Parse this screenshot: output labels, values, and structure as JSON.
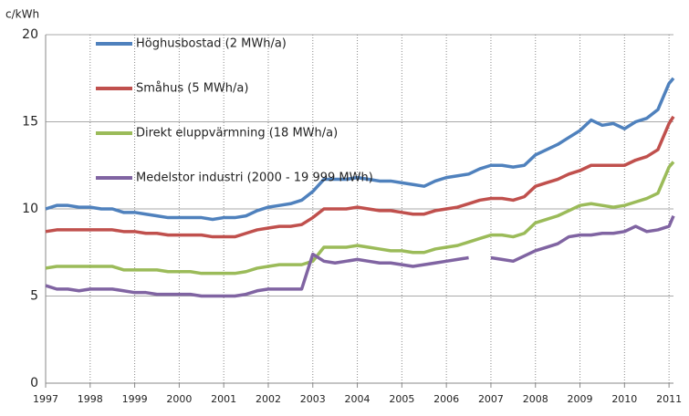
{
  "chart_data": {
    "type": "line",
    "y_label": "c/kWh",
    "x": [
      1997,
      1997.25,
      1997.5,
      1997.75,
      1998,
      1998.25,
      1998.5,
      1998.75,
      1999,
      1999.25,
      1999.5,
      1999.75,
      2000,
      2000.25,
      2000.5,
      2000.75,
      2001,
      2001.25,
      2001.5,
      2001.75,
      2002,
      2002.25,
      2002.5,
      2002.75,
      2003,
      2003.25,
      2003.5,
      2003.75,
      2004,
      2004.25,
      2004.5,
      2004.75,
      2005,
      2005.25,
      2005.5,
      2005.75,
      2006,
      2006.25,
      2006.5,
      2006.75,
      2007,
      2007.25,
      2007.5,
      2007.75,
      2008,
      2008.25,
      2008.5,
      2008.75,
      2009,
      2009.25,
      2009.5,
      2009.75,
      2010,
      2010.25,
      2010.5,
      2010.75,
      2011,
      2011.1
    ],
    "series": [
      {
        "name": "Höghusbostad (2 MWh/a)",
        "color": "#4f81bd",
        "values": [
          10.0,
          10.2,
          10.2,
          10.1,
          10.1,
          10.0,
          10.0,
          9.8,
          9.8,
          9.7,
          9.6,
          9.5,
          9.5,
          9.5,
          9.5,
          9.4,
          9.5,
          9.5,
          9.6,
          9.9,
          10.1,
          10.2,
          10.3,
          10.5,
          11.0,
          11.7,
          11.7,
          11.7,
          11.8,
          11.7,
          11.6,
          11.6,
          11.5,
          11.4,
          11.3,
          11.6,
          11.8,
          11.9,
          12.0,
          12.3,
          12.5,
          12.5,
          12.4,
          12.5,
          13.1,
          13.4,
          13.7,
          14.1,
          14.5,
          15.1,
          14.8,
          14.9,
          14.6,
          15.0,
          15.2,
          15.7,
          17.2,
          17.5
        ]
      },
      {
        "name": "Småhus (5 MWh/a)",
        "color": "#c0504d",
        "values": [
          8.7,
          8.8,
          8.8,
          8.8,
          8.8,
          8.8,
          8.8,
          8.7,
          8.7,
          8.6,
          8.6,
          8.5,
          8.5,
          8.5,
          8.5,
          8.4,
          8.4,
          8.4,
          8.6,
          8.8,
          8.9,
          9.0,
          9.0,
          9.1,
          9.5,
          10.0,
          10.0,
          10.0,
          10.1,
          10.0,
          9.9,
          9.9,
          9.8,
          9.7,
          9.7,
          9.9,
          10.0,
          10.1,
          10.3,
          10.5,
          10.6,
          10.6,
          10.5,
          10.7,
          11.3,
          11.5,
          11.7,
          12.0,
          12.2,
          12.5,
          12.5,
          12.5,
          12.5,
          12.8,
          13.0,
          13.4,
          14.9,
          15.3
        ]
      },
      {
        "name": "Direkt eluppvärmning  (18 MWh/a)",
        "color": "#9bbb59",
        "values": [
          6.6,
          6.7,
          6.7,
          6.7,
          6.7,
          6.7,
          6.7,
          6.5,
          6.5,
          6.5,
          6.5,
          6.4,
          6.4,
          6.4,
          6.3,
          6.3,
          6.3,
          6.3,
          6.4,
          6.6,
          6.7,
          6.8,
          6.8,
          6.8,
          7.0,
          7.8,
          7.8,
          7.8,
          7.9,
          7.8,
          7.7,
          7.6,
          7.6,
          7.5,
          7.5,
          7.7,
          7.8,
          7.9,
          8.1,
          8.3,
          8.5,
          8.5,
          8.4,
          8.6,
          9.2,
          9.4,
          9.6,
          9.9,
          10.2,
          10.3,
          10.2,
          10.1,
          10.2,
          10.4,
          10.6,
          10.9,
          12.4,
          12.7
        ]
      },
      {
        "name": "Medelstor industri  (2000 - 19 999  MWh)",
        "color": "#8064a2",
        "values": [
          5.6,
          5.4,
          5.4,
          5.3,
          5.4,
          5.4,
          5.4,
          5.3,
          5.2,
          5.2,
          5.1,
          5.1,
          5.1,
          5.1,
          5.0,
          5.0,
          5.0,
          5.0,
          5.1,
          5.3,
          5.4,
          5.4,
          5.4,
          5.4,
          7.4,
          7.0,
          6.9,
          7.0,
          7.1,
          7.0,
          6.9,
          6.9,
          6.8,
          6.7,
          6.8,
          6.9,
          7.0,
          7.1,
          7.2,
          null,
          7.2,
          7.1,
          7.0,
          7.3,
          7.6,
          7.8,
          8.0,
          8.4,
          8.5,
          8.5,
          8.6,
          8.6,
          8.7,
          9.0,
          8.7,
          8.8,
          9.0,
          9.6
        ]
      }
    ],
    "xlim": [
      1997,
      2011.1
    ],
    "xticks": [
      1997,
      1998,
      1999,
      2000,
      2001,
      2002,
      2003,
      2004,
      2005,
      2006,
      2007,
      2008,
      2009,
      2010,
      2011
    ],
    "ylim": [
      0,
      20
    ],
    "yticks": [
      0,
      5,
      10,
      15,
      20
    ],
    "grid": true,
    "legend": "upper left"
  }
}
